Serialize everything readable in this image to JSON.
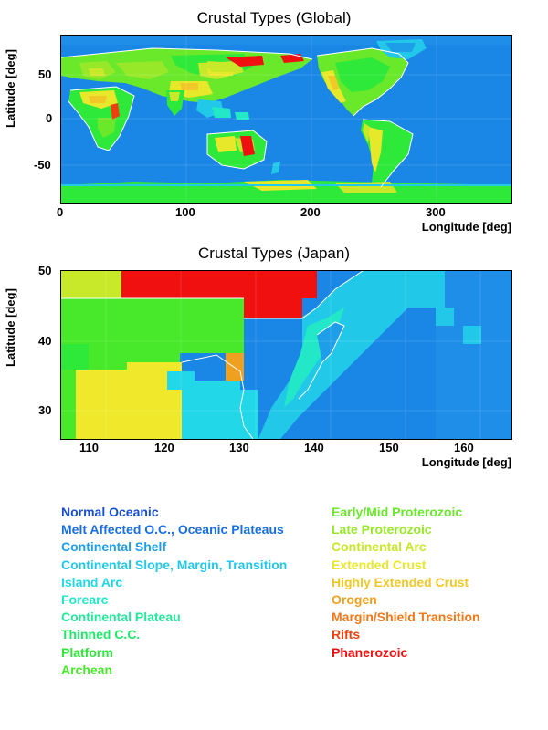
{
  "global": {
    "title": "Crustal Types (Global)",
    "ylabel": "Latitude [deg]",
    "xlabel": "Longitude [deg]",
    "xticks": [
      "0",
      "100",
      "200",
      "300"
    ],
    "yticks": [
      "50",
      "0",
      "-50"
    ]
  },
  "japan": {
    "title": "Crustal Types (Japan)",
    "ylabel": "Latitude [deg]",
    "xlabel": "Longitude [deg]",
    "xticks": [
      "110",
      "120",
      "130",
      "140",
      "150",
      "160"
    ],
    "yticks": [
      "50",
      "40",
      "30"
    ]
  },
  "legend_left": [
    {
      "label": "Normal Oceanic",
      "color": "#1a4fd0"
    },
    {
      "label": "Melt Affected O.C., Oceanic Plateaus",
      "color": "#1a6fe0"
    },
    {
      "label": "Continental Shelf",
      "color": "#1e9ee8"
    },
    {
      "label": "Continental Slope, Margin, Transition",
      "color": "#22c8e8"
    },
    {
      "label": "Island Arc",
      "color": "#22d8e8"
    },
    {
      "label": "Forearc",
      "color": "#22e8c8"
    },
    {
      "label": "Continental Plateau",
      "color": "#22e89a"
    },
    {
      "label": "Thinned C.C.",
      "color": "#22e86a"
    },
    {
      "label": "Platform",
      "color": "#2ee83a"
    },
    {
      "label": "Archean",
      "color": "#48e82a"
    }
  ],
  "legend_right": [
    {
      "label": "Early/Mid Proterozoic",
      "color": "#6ae82a"
    },
    {
      "label": "Late Proterozoic",
      "color": "#98e82a"
    },
    {
      "label": "Continental Arc",
      "color": "#c8e82a"
    },
    {
      "label": "Extended Crust",
      "color": "#e8e82a"
    },
    {
      "label": "Highly Extended Crust",
      "color": "#f0c828"
    },
    {
      "label": "Orogen",
      "color": "#f0a020"
    },
    {
      "label": "Margin/Shield Transition",
      "color": "#f07818"
    },
    {
      "label": "Rifts",
      "color": "#f04010"
    },
    {
      "label": "Phanerozoic",
      "color": "#f01010"
    }
  ]
}
